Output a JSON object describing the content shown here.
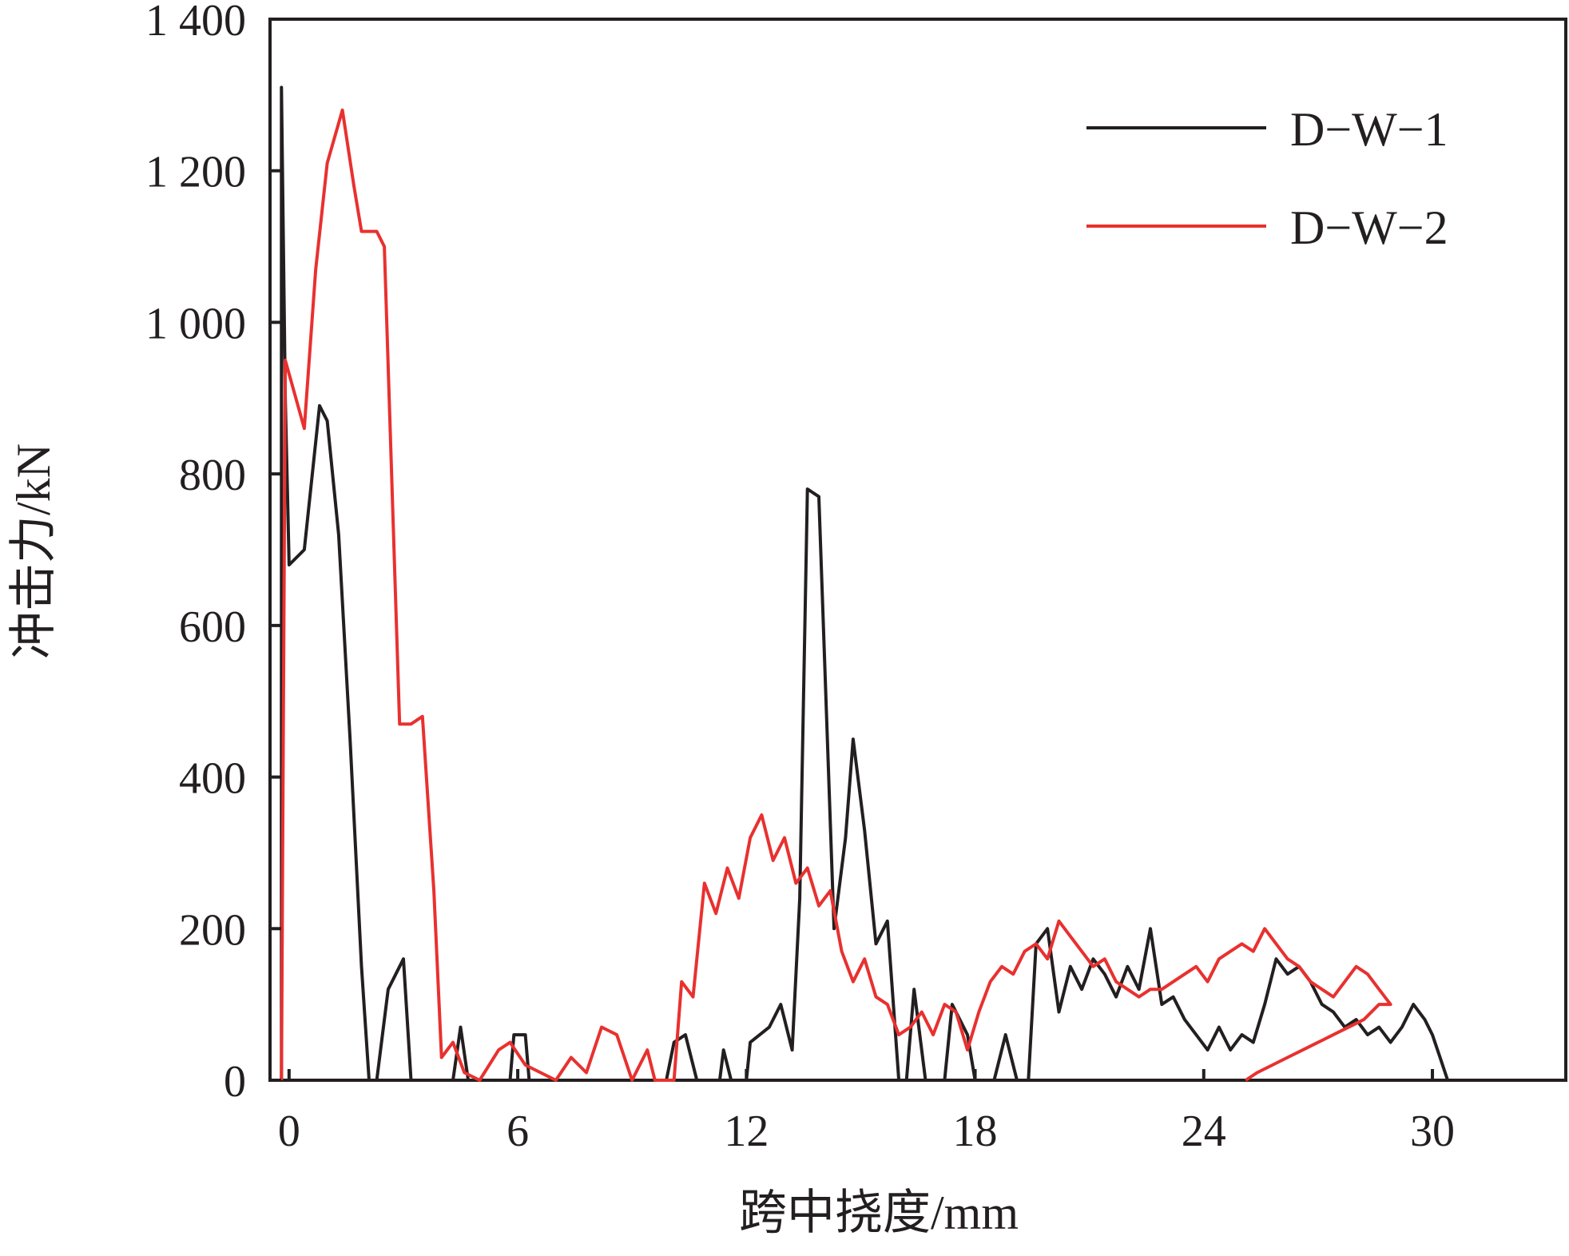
{
  "chart_data": {
    "type": "line",
    "xlabel": "跨中挠度/mm",
    "ylabel": "冲击力/kN",
    "xlim": [
      -0.5,
      33.5
    ],
    "ylim": [
      0,
      1400
    ],
    "x_ticks": [
      0,
      6,
      12,
      18,
      24,
      30
    ],
    "x_tick_labels": [
      "0",
      "6",
      "12",
      "18",
      "24",
      "30"
    ],
    "y_ticks": [
      0,
      200,
      400,
      600,
      800,
      1000,
      1200,
      1400
    ],
    "y_tick_labels": [
      "0",
      "200",
      "400",
      "600",
      "800",
      "1 000",
      "1 200",
      "1 400"
    ],
    "grid": false,
    "legend_position": "top-right",
    "series": [
      {
        "name": "D−W−1",
        "color": "#231f20",
        "points": [
          [
            -0.2,
            0
          ],
          [
            -0.2,
            1310
          ],
          [
            -0.1,
            900
          ],
          [
            0,
            680
          ],
          [
            0.4,
            700
          ],
          [
            0.8,
            890
          ],
          [
            1.0,
            870
          ],
          [
            1.3,
            720
          ],
          [
            1.6,
            450
          ],
          [
            1.9,
            150
          ],
          [
            2.1,
            0
          ],
          [
            2.3,
            0
          ],
          [
            2.6,
            120
          ],
          [
            3.0,
            160
          ],
          [
            3.2,
            0
          ],
          [
            4.3,
            0
          ],
          [
            4.5,
            70
          ],
          [
            4.7,
            0
          ],
          [
            5.8,
            0
          ],
          [
            5.9,
            60
          ],
          [
            6.2,
            60
          ],
          [
            6.3,
            0
          ],
          [
            9.9,
            0
          ],
          [
            10.1,
            50
          ],
          [
            10.4,
            60
          ],
          [
            10.7,
            0
          ],
          [
            11.3,
            0
          ],
          [
            11.4,
            40
          ],
          [
            11.6,
            0
          ],
          [
            12.0,
            0
          ],
          [
            12.1,
            50
          ],
          [
            12.6,
            70
          ],
          [
            12.9,
            100
          ],
          [
            13.2,
            40
          ],
          [
            13.4,
            240
          ],
          [
            13.6,
            780
          ],
          [
            13.9,
            770
          ],
          [
            14.3,
            200
          ],
          [
            14.6,
            320
          ],
          [
            14.8,
            450
          ],
          [
            15.1,
            330
          ],
          [
            15.4,
            180
          ],
          [
            15.7,
            210
          ],
          [
            16.0,
            0
          ],
          [
            16.2,
            0
          ],
          [
            16.4,
            120
          ],
          [
            16.7,
            0
          ],
          [
            17.2,
            0
          ],
          [
            17.4,
            100
          ],
          [
            17.8,
            60
          ],
          [
            18.0,
            0
          ],
          [
            18.5,
            0
          ],
          [
            18.8,
            60
          ],
          [
            19.1,
            0
          ],
          [
            19.4,
            0
          ],
          [
            19.6,
            180
          ],
          [
            19.9,
            200
          ],
          [
            20.2,
            90
          ],
          [
            20.5,
            150
          ],
          [
            20.8,
            120
          ],
          [
            21.1,
            160
          ],
          [
            21.4,
            140
          ],
          [
            21.7,
            110
          ],
          [
            22.0,
            150
          ],
          [
            22.3,
            120
          ],
          [
            22.6,
            200
          ],
          [
            22.9,
            100
          ],
          [
            23.2,
            110
          ],
          [
            23.5,
            80
          ],
          [
            23.8,
            60
          ],
          [
            24.1,
            40
          ],
          [
            24.4,
            70
          ],
          [
            24.7,
            40
          ],
          [
            25.0,
            60
          ],
          [
            25.3,
            50
          ],
          [
            25.6,
            100
          ],
          [
            25.9,
            160
          ],
          [
            26.2,
            140
          ],
          [
            26.5,
            150
          ],
          [
            26.8,
            130
          ],
          [
            27.1,
            100
          ],
          [
            27.4,
            90
          ],
          [
            27.7,
            70
          ],
          [
            28.0,
            80
          ],
          [
            28.3,
            60
          ],
          [
            28.6,
            70
          ],
          [
            28.9,
            50
          ],
          [
            29.2,
            70
          ],
          [
            29.5,
            100
          ],
          [
            29.8,
            80
          ],
          [
            30.0,
            60
          ],
          [
            30.2,
            30
          ],
          [
            30.4,
            0
          ]
        ]
      },
      {
        "name": "D−W−2",
        "color": "#e8312f",
        "points": [
          [
            -0.2,
            0
          ],
          [
            -0.1,
            950
          ],
          [
            0.4,
            860
          ],
          [
            0.7,
            1070
          ],
          [
            1.0,
            1210
          ],
          [
            1.4,
            1280
          ],
          [
            1.7,
            1180
          ],
          [
            1.9,
            1120
          ],
          [
            2.3,
            1120
          ],
          [
            2.5,
            1100
          ],
          [
            2.9,
            470
          ],
          [
            3.2,
            470
          ],
          [
            3.5,
            480
          ],
          [
            3.8,
            250
          ],
          [
            4.0,
            30
          ],
          [
            4.3,
            50
          ],
          [
            4.6,
            10
          ],
          [
            5.0,
            0
          ],
          [
            5.5,
            40
          ],
          [
            5.8,
            50
          ],
          [
            6.2,
            20
          ],
          [
            6.6,
            10
          ],
          [
            7.0,
            0
          ],
          [
            7.4,
            30
          ],
          [
            7.8,
            10
          ],
          [
            8.2,
            70
          ],
          [
            8.6,
            60
          ],
          [
            9.0,
            0
          ],
          [
            9.4,
            40
          ],
          [
            9.6,
            0
          ],
          [
            10.1,
            0
          ],
          [
            10.3,
            130
          ],
          [
            10.6,
            110
          ],
          [
            10.9,
            260
          ],
          [
            11.2,
            220
          ],
          [
            11.5,
            280
          ],
          [
            11.8,
            240
          ],
          [
            12.1,
            320
          ],
          [
            12.4,
            350
          ],
          [
            12.7,
            290
          ],
          [
            13.0,
            320
          ],
          [
            13.3,
            260
          ],
          [
            13.6,
            280
          ],
          [
            13.9,
            230
          ],
          [
            14.2,
            250
          ],
          [
            14.5,
            170
          ],
          [
            14.8,
            130
          ],
          [
            15.1,
            160
          ],
          [
            15.4,
            110
          ],
          [
            15.7,
            100
          ],
          [
            16.0,
            60
          ],
          [
            16.3,
            70
          ],
          [
            16.6,
            90
          ],
          [
            16.9,
            60
          ],
          [
            17.2,
            100
          ],
          [
            17.5,
            90
          ],
          [
            17.8,
            40
          ],
          [
            18.1,
            90
          ],
          [
            18.4,
            130
          ],
          [
            18.7,
            150
          ],
          [
            19.0,
            140
          ],
          [
            19.3,
            170
          ],
          [
            19.6,
            180
          ],
          [
            19.9,
            160
          ],
          [
            20.2,
            210
          ],
          [
            20.5,
            190
          ],
          [
            20.8,
            170
          ],
          [
            21.1,
            150
          ],
          [
            21.4,
            160
          ],
          [
            21.7,
            130
          ],
          [
            22.0,
            120
          ],
          [
            22.3,
            110
          ],
          [
            22.6,
            120
          ],
          [
            22.9,
            120
          ],
          [
            23.2,
            130
          ],
          [
            23.5,
            140
          ],
          [
            23.8,
            150
          ],
          [
            24.1,
            130
          ],
          [
            24.4,
            160
          ],
          [
            24.7,
            170
          ],
          [
            25.0,
            180
          ],
          [
            25.3,
            170
          ],
          [
            25.6,
            200
          ],
          [
            25.9,
            180
          ],
          [
            26.2,
            160
          ],
          [
            26.5,
            150
          ],
          [
            26.8,
            130
          ],
          [
            27.1,
            120
          ],
          [
            27.4,
            110
          ],
          [
            27.7,
            130
          ],
          [
            28.0,
            150
          ],
          [
            28.3,
            140
          ],
          [
            28.6,
            120
          ],
          [
            28.9,
            100
          ],
          [
            28.6,
            100
          ],
          [
            28.2,
            80
          ],
          [
            27.8,
            70
          ],
          [
            27.4,
            60
          ],
          [
            27.0,
            50
          ],
          [
            26.6,
            40
          ],
          [
            26.2,
            30
          ],
          [
            25.8,
            20
          ],
          [
            25.4,
            10
          ],
          [
            25.1,
            0
          ]
        ]
      }
    ]
  }
}
